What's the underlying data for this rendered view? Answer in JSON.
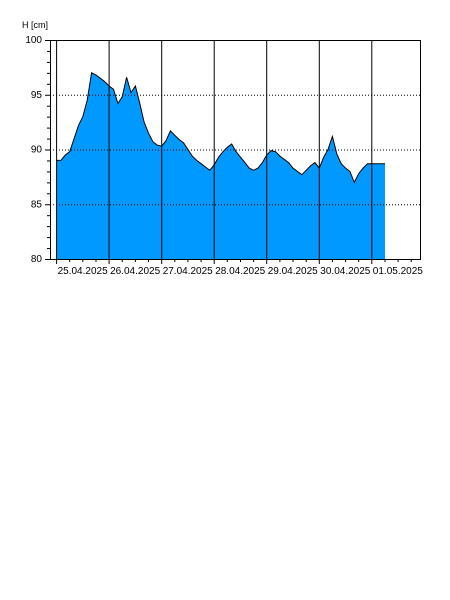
{
  "chart_data": {
    "type": "area",
    "ylabel": "H [cm]",
    "xlabel": "",
    "title": "",
    "ylim": [
      80,
      100
    ],
    "y_ticks": [
      80,
      85,
      90,
      95,
      100
    ],
    "x_range": [
      "2025-04-24T21:00",
      "2025-05-01T22:00"
    ],
    "x_tick_labels": [
      "25.04.2025",
      "26.04.2025",
      "27.04.2025",
      "28.04.2025",
      "29.04.2025",
      "30.04.2025",
      "01.05.2025"
    ],
    "grid": {
      "horizontal": "dotted",
      "vertical": "solid at midnight"
    },
    "fill_color": "#0099ff",
    "line_color": "#000000",
    "series": [
      {
        "x": [
          "2025-04-25T00:00",
          "2025-04-25T02:00",
          "2025-04-25T04:00",
          "2025-04-25T06:00",
          "2025-04-25T08:00",
          "2025-04-25T10:00",
          "2025-04-25T12:00",
          "2025-04-25T14:00",
          "2025-04-25T16:00",
          "2025-04-25T18:00",
          "2025-04-25T20:00",
          "2025-04-25T22:00",
          "2025-04-26T00:00",
          "2025-04-26T02:00",
          "2025-04-26T04:00",
          "2025-04-26T06:00",
          "2025-04-26T08:00",
          "2025-04-26T10:00",
          "2025-04-26T12:00",
          "2025-04-26T14:00",
          "2025-04-26T16:00",
          "2025-04-26T18:00",
          "2025-04-26T20:00",
          "2025-04-26T22:00",
          "2025-04-27T00:00",
          "2025-04-27T02:00",
          "2025-04-27T04:00",
          "2025-04-27T06:00",
          "2025-04-27T08:00",
          "2025-04-27T10:00",
          "2025-04-27T12:00",
          "2025-04-27T14:00",
          "2025-04-27T16:00",
          "2025-04-27T18:00",
          "2025-04-27T20:00",
          "2025-04-27T22:00",
          "2025-04-28T00:00",
          "2025-04-28T02:00",
          "2025-04-28T04:00",
          "2025-04-28T06:00",
          "2025-04-28T08:00",
          "2025-04-28T10:00",
          "2025-04-28T12:00",
          "2025-04-28T14:00",
          "2025-04-28T16:00",
          "2025-04-28T18:00",
          "2025-04-28T20:00",
          "2025-04-28T22:00",
          "2025-04-29T00:00",
          "2025-04-29T02:00",
          "2025-04-29T04:00",
          "2025-04-29T06:00",
          "2025-04-29T08:00",
          "2025-04-29T10:00",
          "2025-04-29T12:00",
          "2025-04-29T14:00",
          "2025-04-29T16:00",
          "2025-04-29T18:00",
          "2025-04-29T20:00",
          "2025-04-29T22:00",
          "2025-04-30T00:00",
          "2025-04-30T02:00",
          "2025-04-30T04:00",
          "2025-04-30T06:00",
          "2025-04-30T08:00",
          "2025-04-30T10:00",
          "2025-04-30T12:00",
          "2025-04-30T14:00",
          "2025-04-30T16:00",
          "2025-04-30T18:00",
          "2025-04-30T20:00",
          "2025-04-30T22:00",
          "2025-05-01T00:00",
          "2025-05-01T02:00",
          "2025-05-01T04:00",
          "2025-05-01T06:00"
        ],
        "y": [
          89.0,
          89.0,
          89.5,
          89.8,
          91.0,
          92.2,
          93.0,
          94.5,
          97.0,
          96.8,
          96.5,
          96.2,
          95.8,
          95.5,
          94.2,
          94.8,
          96.6,
          95.2,
          95.8,
          94.2,
          92.5,
          91.5,
          90.7,
          90.4,
          90.3,
          90.8,
          91.7,
          91.3,
          90.9,
          90.6,
          90.0,
          89.4,
          89.0,
          88.7,
          88.4,
          88.1,
          88.6,
          89.3,
          89.8,
          90.2,
          90.5,
          89.8,
          89.3,
          88.8,
          88.3,
          88.1,
          88.3,
          88.8,
          89.5,
          89.9,
          89.8,
          89.4,
          89.1,
          88.8,
          88.3,
          88.0,
          87.7,
          88.1,
          88.5,
          88.8,
          88.3,
          89.3,
          90.0,
          91.2,
          89.6,
          88.7,
          88.3,
          88.0,
          87.0,
          87.8,
          88.3,
          88.7,
          88.7,
          88.7,
          88.7,
          88.7
        ]
      }
    ]
  }
}
